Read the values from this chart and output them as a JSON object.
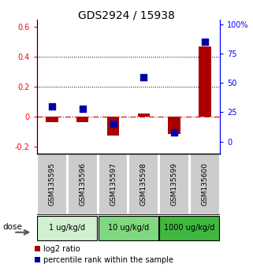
{
  "title": "GDS2924 / 15938",
  "samples": [
    "GSM135595",
    "GSM135596",
    "GSM135597",
    "GSM135598",
    "GSM135599",
    "GSM135600"
  ],
  "log2_ratio": [
    -0.04,
    -0.04,
    -0.13,
    0.02,
    -0.12,
    0.47
  ],
  "percentile_rank": [
    30,
    28,
    15,
    55,
    8,
    85
  ],
  "dose_groups": [
    {
      "label": "1 ug/kg/d",
      "samples": [
        0,
        1
      ],
      "color": "#d0f0d0"
    },
    {
      "label": "10 ug/kg/d",
      "samples": [
        2,
        3
      ],
      "color": "#80d880"
    },
    {
      "label": "1000 ug/kg/d",
      "samples": [
        4,
        5
      ],
      "color": "#40b840"
    }
  ],
  "ylim_left": [
    -0.25,
    0.65
  ],
  "ylim_right": [
    -10.4,
    104.2
  ],
  "bar_color": "#aa0000",
  "dot_color": "#0000aa",
  "zero_line_color": "#cc0000",
  "left_ticks": [
    -0.2,
    0.0,
    0.2,
    0.4,
    0.6
  ],
  "right_ticks": [
    0,
    25,
    50,
    75,
    100
  ],
  "left_tick_labels": [
    "-0.2",
    "0",
    "0.2",
    "0.4",
    "0.6"
  ],
  "right_tick_labels": [
    "0",
    "25",
    "50",
    "75",
    "100%"
  ],
  "sample_box_color": "#cccccc",
  "title_fontsize": 10,
  "tick_fontsize": 7,
  "legend_fontsize": 7,
  "legend_red": "log2 ratio",
  "legend_blue": "percentile rank within the sample"
}
